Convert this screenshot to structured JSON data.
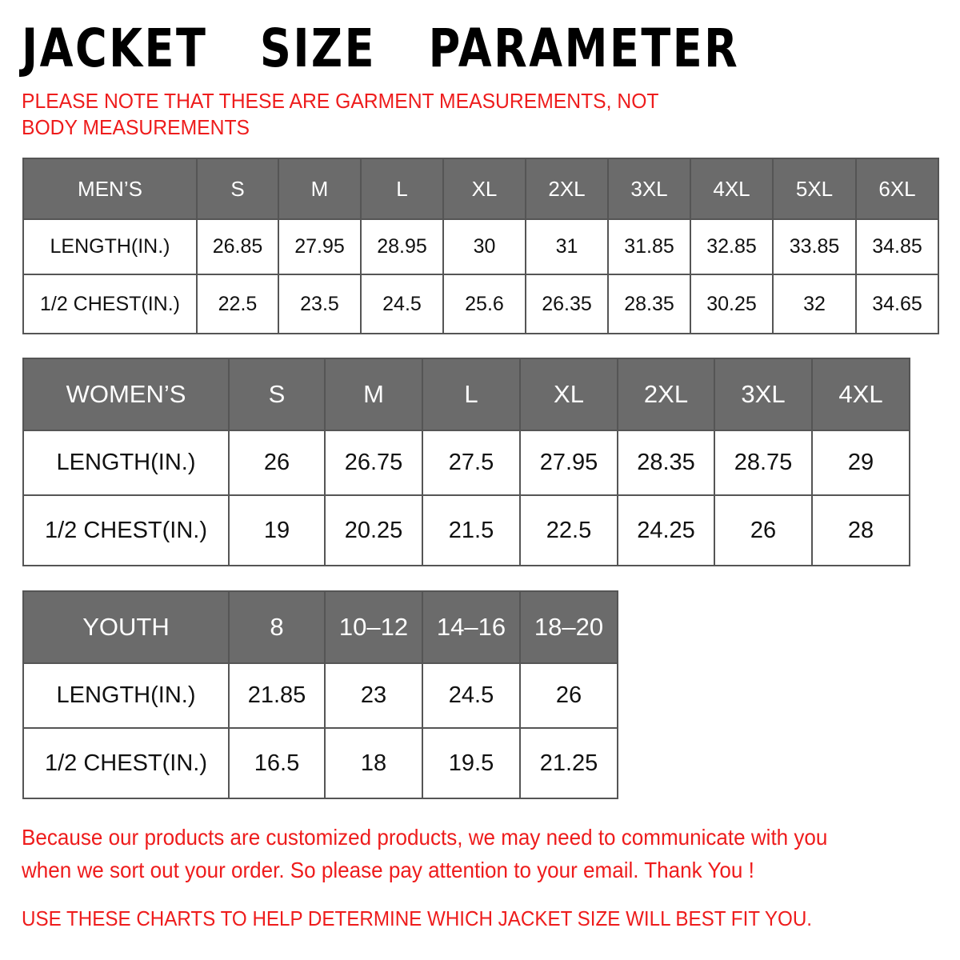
{
  "title": "JACKET  SIZE  PARAMETER",
  "note": "PLEASE NOTE THAT THESE ARE GARMENT MEASUREMENTS, NOT BODY MEASUREMENTS",
  "tables": {
    "men": {
      "header": [
        "MEN’S",
        "S",
        "M",
        "L",
        "XL",
        "2XL",
        "3XL",
        "4XL",
        "5XL",
        "6XL"
      ],
      "rows": [
        [
          "LENGTH(IN.)",
          "26.85",
          "27.95",
          "28.95",
          "30",
          "31",
          "31.85",
          "32.85",
          "33.85",
          "34.85"
        ],
        [
          "1/2 CHEST(IN.)",
          "22.5",
          "23.5",
          "24.5",
          "25.6",
          "26.35",
          "28.35",
          "30.25",
          "32",
          "34.65"
        ]
      ]
    },
    "women": {
      "header": [
        "WOMEN’S",
        "S",
        "M",
        "L",
        "XL",
        "2XL",
        "3XL",
        "4XL"
      ],
      "rows": [
        [
          "LENGTH(IN.)",
          "26",
          "26.75",
          "27.5",
          "27.95",
          "28.35",
          "28.75",
          "29"
        ],
        [
          "1/2 CHEST(IN.)",
          "19",
          "20.25",
          "21.5",
          "22.5",
          "24.25",
          "26",
          "28"
        ]
      ]
    },
    "youth": {
      "header": [
        "YOUTH",
        "8",
        "10–12",
        "14–16",
        "18–20"
      ],
      "rows": [
        [
          "LENGTH(IN.)",
          "21.85",
          "23",
          "24.5",
          "26"
        ],
        [
          "1/2 CHEST(IN.)",
          "16.5",
          "18",
          "19.5",
          "21.25"
        ]
      ]
    }
  },
  "footer": {
    "line1": "Because our products are customized products, we may need to communicate with you",
    "line2": "when we sort out your order. So please pay attention to your email. Thank You !",
    "line3": "USE THESE CHARTS TO HELP DETERMINE WHICH JACKET SIZE WILL BEST FIT YOU."
  },
  "colors": {
    "header_bg": "#6b6b6b",
    "accent_red": "#ee1c1c"
  }
}
